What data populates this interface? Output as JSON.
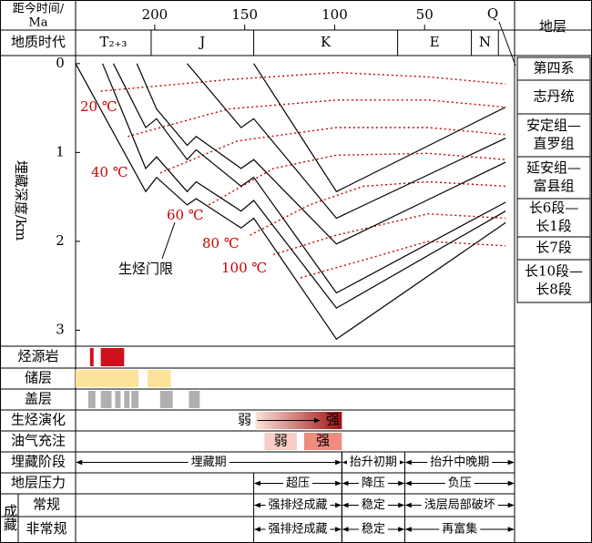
{
  "chart_data": {
    "type": "burial",
    "x_label": [
      "距今时间/",
      "Ma"
    ],
    "y_label": "埋藏深度/km",
    "xlim": [
      244,
      0
    ],
    "xticks": [
      200,
      150,
      100,
      50
    ],
    "ylim": [
      -0.08,
      3.18
    ],
    "yticks": [
      0,
      1,
      2,
      3
    ],
    "q_label": "Q",
    "periods_label": "地质时代",
    "periods": [
      {
        "name": "T₂₊₃",
        "start": 244,
        "end": 202
      },
      {
        "name": "J",
        "start": 202,
        "end": 145
      },
      {
        "name": "K",
        "start": 145,
        "end": 65
      },
      {
        "name": "E",
        "start": 65,
        "end": 24
      },
      {
        "name": "N",
        "start": 24,
        "end": 9
      }
    ],
    "burial_lines": [
      {
        "x": [
          145,
          99,
          5
        ],
        "y": [
          0,
          1.44,
          0.49
        ]
      },
      {
        "x": [
          182,
          152,
          145,
          99,
          5
        ],
        "y": [
          0,
          0.72,
          0.62,
          1.74,
          0.84
        ]
      },
      {
        "x": [
          210,
          199,
          182,
          177,
          152,
          145,
          99,
          5
        ],
        "y": [
          0,
          0.51,
          0.92,
          0.82,
          1.18,
          1.08,
          2.03,
          1.11
        ]
      },
      {
        "x": [
          223,
          205,
          199,
          182,
          177,
          152,
          145,
          99,
          5
        ],
        "y": [
          0,
          0.72,
          0.62,
          1.08,
          0.97,
          1.38,
          1.28,
          2.58,
          1.56
        ]
      },
      {
        "x": [
          229,
          205,
          199,
          182,
          177,
          152,
          145,
          99,
          5
        ],
        "y": [
          0,
          1.18,
          1.05,
          1.44,
          1.33,
          1.66,
          1.54,
          2.75,
          1.66
        ]
      },
      {
        "x": [
          244,
          205,
          199,
          182,
          177,
          152,
          145,
          99,
          5
        ],
        "y": [
          0,
          1.44,
          1.28,
          1.59,
          1.52,
          1.85,
          1.74,
          3.1,
          1.79
        ]
      }
    ],
    "line_color": "#000000",
    "isotherm_color": "#cc0000",
    "isotherms": [
      {
        "x": [
          230,
          159,
          99,
          48,
          5
        ],
        "y": [
          0.31,
          0.18,
          0.1,
          0.15,
          0.23
        ]
      },
      {
        "x": [
          215,
          159,
          99,
          48,
          5
        ],
        "y": [
          0.82,
          0.51,
          0.41,
          0.41,
          0.49
        ]
      },
      {
        "x": [
          197,
          154,
          99,
          48,
          5
        ],
        "y": [
          1.23,
          0.87,
          0.72,
          0.72,
          0.8
        ]
      },
      {
        "x": [
          170,
          134,
          99,
          48,
          5
        ],
        "y": [
          1.59,
          1.18,
          1.03,
          1.01,
          1.08
        ]
      },
      {
        "x": [
          147,
          114,
          84,
          48,
          5
        ],
        "y": [
          1.93,
          1.59,
          1.38,
          1.33,
          1.38
        ]
      },
      {
        "x": [
          134,
          99,
          48,
          5
        ],
        "y": [
          2.15,
          1.93,
          1.69,
          1.74
        ]
      },
      {
        "x": [
          119,
          84,
          48,
          5
        ],
        "y": [
          2.41,
          2.21,
          2.0,
          2.05
        ]
      }
    ],
    "isotherm_labels": [
      "20 ℃",
      "40 ℃",
      "60 ℃",
      "80 ℃",
      "100 ℃"
    ],
    "threshold_label": "生烃门限",
    "strata_title": "地层",
    "strata": [
      [
        "第四系"
      ],
      [
        "志丹统"
      ],
      [
        "安定组—",
        "直罗组"
      ],
      [
        "延安组—",
        "富县组"
      ],
      [
        "长6段—",
        "长1段"
      ],
      [
        "长7段"
      ],
      [
        "长10段—",
        "长8段"
      ]
    ],
    "accumulation_label": "成藏",
    "rows": [
      {
        "label": "烃源岩",
        "style": "box",
        "color": "#d0101a",
        "intervals": [
          {
            "start": 236,
            "end": 234
          },
          {
            "start": 230,
            "end": 217
          }
        ]
      },
      {
        "label": "储层",
        "style": "box",
        "color": "#fde39a",
        "intervals": [
          {
            "start": 244,
            "end": 209
          },
          {
            "start": 204,
            "end": 191
          }
        ]
      },
      {
        "label": "盖层",
        "style": "box",
        "color": "#b0b0b0",
        "intervals": [
          {
            "start": 237,
            "end": 233
          },
          {
            "start": 230,
            "end": 224
          },
          {
            "start": 222,
            "end": 219
          },
          {
            "start": 217,
            "end": 214
          },
          {
            "start": 213,
            "end": 209
          },
          {
            "start": 197,
            "end": 190
          },
          {
            "start": 181,
            "end": 175
          }
        ]
      },
      {
        "label": "生烃演化",
        "style": "gradient",
        "color": "#a01010",
        "intervals": [
          {
            "start": 144,
            "end": 96,
            "from": "弱",
            "to": "强"
          }
        ]
      },
      {
        "label": "油气充注",
        "style": "box",
        "color": "#f2a89e",
        "intervals": [
          {
            "start": 139,
            "end": 121,
            "label": "弱",
            "color": "#f8cdc6"
          },
          {
            "start": 117,
            "end": 96,
            "label": "强",
            "color": "#ee8c80"
          }
        ]
      },
      {
        "label": "埋藏阶段",
        "style": "arrow",
        "intervals": [
          {
            "start": 244,
            "end": 96,
            "label": "埋藏期"
          },
          {
            "start": 96,
            "end": 61,
            "label": "抬升初期"
          },
          {
            "start": 61,
            "end": 0,
            "label": "抬升中晚期"
          }
        ]
      },
      {
        "label": "地层压力",
        "style": "arrow",
        "intervals": [
          {
            "start": 145,
            "end": 96,
            "label": "超压"
          },
          {
            "start": 96,
            "end": 61,
            "label": "降压"
          },
          {
            "start": 61,
            "end": 0,
            "label": "负压"
          }
        ]
      },
      {
        "label": "常规",
        "style": "arrow",
        "intervals": [
          {
            "start": 145,
            "end": 96,
            "label": "强排烃成藏"
          },
          {
            "start": 96,
            "end": 61,
            "label": "稳定"
          },
          {
            "start": 61,
            "end": 0,
            "label": "浅层局部破坏"
          }
        ]
      },
      {
        "label": "非常规",
        "style": "arrow",
        "intervals": [
          {
            "start": 145,
            "end": 96,
            "label": "强排烃成藏"
          },
          {
            "start": 96,
            "end": 61,
            "label": "稳定"
          },
          {
            "start": 61,
            "end": 0,
            "label": "再富集"
          }
        ]
      }
    ]
  }
}
